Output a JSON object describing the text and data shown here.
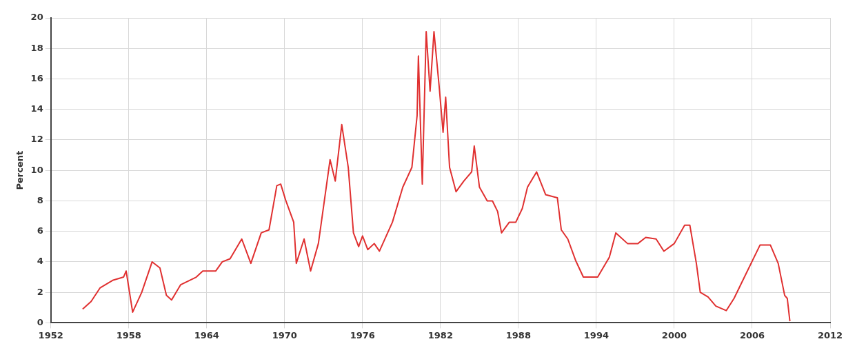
{
  "chart_data": {
    "type": "line",
    "ylabel": "Percent",
    "xlim": [
      1952,
      2012
    ],
    "xticks": [
      1952,
      1958,
      1964,
      1970,
      1976,
      1982,
      1988,
      1994,
      2000,
      2006,
      2012
    ],
    "ylim": [
      0,
      20
    ],
    "yticks": [
      0,
      2,
      4,
      6,
      8,
      10,
      12,
      14,
      16,
      18,
      20
    ],
    "grid": true,
    "legend": false,
    "marker": "none",
    "line_style": "solid",
    "series": [
      {
        "color": "#e03030",
        "x": [
          1954.45,
          1955.1,
          1955.8,
          1956.8,
          1957.6,
          1957.8,
          1958.3,
          1959.0,
          1959.8,
          1960.4,
          1960.9,
          1961.3,
          1962.0,
          1963.2,
          1963.7,
          1964.7,
          1965.2,
          1965.8,
          1966.7,
          1967.4,
          1968.2,
          1968.8,
          1969.4,
          1969.7,
          1970.1,
          1970.7,
          1970.9,
          1971.5,
          1972.0,
          1972.6,
          1973.5,
          1973.9,
          1974.4,
          1974.9,
          1975.3,
          1975.7,
          1976.0,
          1976.4,
          1976.9,
          1977.3,
          1978.3,
          1979.1,
          1979.8,
          1980.2,
          1980.3,
          1980.6,
          1980.9,
          1981.2,
          1981.5,
          1981.9,
          1982.2,
          1982.4,
          1982.7,
          1983.2,
          1983.8,
          1984.4,
          1984.6,
          1985.0,
          1985.6,
          1986.0,
          1986.4,
          1986.7,
          1987.3,
          1987.8,
          1988.3,
          1988.7,
          1989.4,
          1990.1,
          1991.0,
          1991.3,
          1991.8,
          1992.4,
          1993.0,
          1994.1,
          1995.0,
          1995.5,
          1996.4,
          1997.2,
          1997.8,
          1998.6,
          1999.2,
          2000.0,
          2000.8,
          2001.2,
          2001.7,
          2002.0,
          2002.6,
          2003.2,
          2004.0,
          2004.6,
          2005.4,
          2006.6,
          2007.4,
          2008.0,
          2008.5,
          2008.7,
          2008.9
        ],
        "values": [
          0.9,
          1.4,
          2.3,
          2.8,
          3.0,
          3.4,
          0.7,
          2.0,
          4.0,
          3.6,
          1.8,
          1.5,
          2.5,
          3.0,
          3.4,
          3.4,
          4.0,
          4.2,
          5.5,
          3.9,
          5.9,
          6.1,
          9.0,
          9.1,
          8.0,
          6.6,
          3.9,
          5.5,
          3.4,
          5.2,
          10.7,
          9.3,
          13.0,
          10.2,
          5.9,
          5.0,
          5.7,
          4.8,
          5.2,
          4.7,
          6.6,
          8.9,
          10.2,
          13.6,
          17.5,
          9.1,
          19.1,
          15.2,
          19.1,
          15.5,
          12.5,
          14.8,
          10.2,
          8.6,
          9.3,
          9.9,
          11.6,
          8.9,
          8.0,
          8.0,
          7.3,
          5.9,
          6.6,
          6.6,
          7.5,
          8.9,
          9.9,
          8.4,
          8.2,
          6.1,
          5.5,
          4.1,
          3.0,
          3.0,
          4.3,
          5.9,
          5.2,
          5.2,
          5.6,
          5.5,
          4.7,
          5.2,
          6.4,
          6.4,
          3.9,
          2.0,
          1.7,
          1.1,
          0.8,
          1.6,
          3.0,
          5.1,
          5.1,
          3.9,
          1.8,
          1.6,
          0.1
        ]
      }
    ]
  }
}
